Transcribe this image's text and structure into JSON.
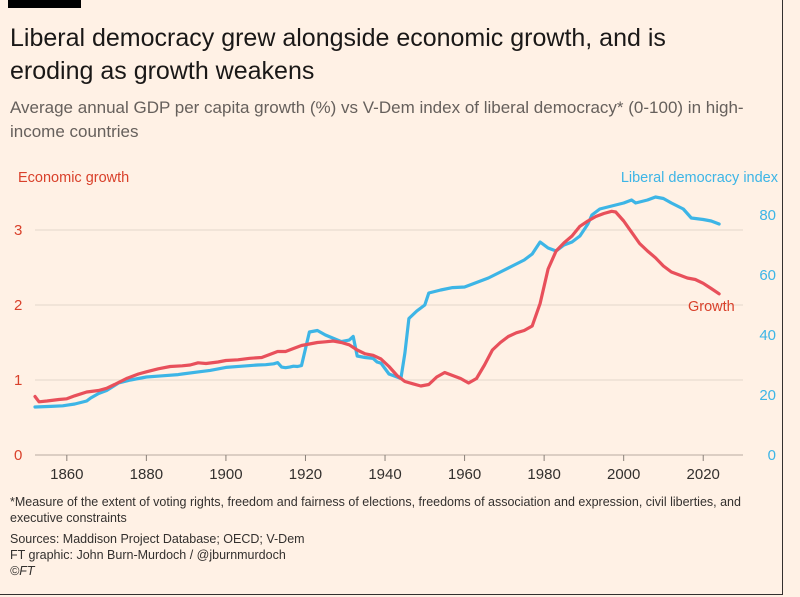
{
  "header": {
    "title": "Liberal democracy grew alongside economic growth, and is eroding as growth weakens",
    "subtitle": "Average annual GDP per capita growth (%) vs V-Dem index of liberal democracy* (0-100) in high-income countries"
  },
  "footer": {
    "note": "*Measure of the extent of voting rights, freedom and fairness of elections, freedoms of association and expression, civil liberties, and executive constraints",
    "sources": "Sources: Maddison Project Database; OECD; V-Dem",
    "credit": "FT graphic: John Burn-Murdoch / @jburnmurdoch",
    "copyright": "©FT"
  },
  "colors": {
    "background": "#fff1e5",
    "growth": "#e8505b",
    "democracy": "#3db5e6",
    "grid": "#e3d6ca",
    "text": "#33302e",
    "left_axis_text": "#d9412b"
  },
  "chart_data": {
    "type": "line",
    "title": "",
    "left_axis": {
      "label": "Economic growth",
      "unit": "%",
      "ylim": [
        0,
        3.4
      ],
      "ticks": [
        "0",
        "1",
        "2",
        "3"
      ]
    },
    "right_axis": {
      "label": "Liberal democracy index",
      "ylim": [
        0,
        85
      ],
      "ticks": [
        "0",
        "20",
        "40",
        "60",
        "80"
      ]
    },
    "x_axis": {
      "xlim": [
        1852,
        2030
      ],
      "ticks": [
        "1860",
        "1880",
        "1900",
        "1920",
        "1940",
        "1960",
        "1980",
        "2000",
        "2020"
      ]
    },
    "series": [
      {
        "name": "Growth",
        "axis": "left",
        "annotation": "Growth",
        "x": [
          1852,
          1853,
          1855,
          1858,
          1860,
          1862,
          1865,
          1868,
          1870,
          1872,
          1875,
          1878,
          1880,
          1883,
          1886,
          1889,
          1891,
          1893,
          1895,
          1898,
          1900,
          1903,
          1906,
          1909,
          1911,
          1913,
          1915,
          1917,
          1919,
          1921,
          1923,
          1925,
          1927,
          1929,
          1931,
          1933,
          1935,
          1937,
          1939,
          1941,
          1943,
          1945,
          1947,
          1949,
          1951,
          1953,
          1955,
          1957,
          1959,
          1961,
          1963,
          1965,
          1967,
          1969,
          1971,
          1973,
          1975,
          1977,
          1979,
          1981,
          1983,
          1985,
          1987,
          1989,
          1991,
          1993,
          1995,
          1997,
          1998,
          2000,
          2002,
          2004,
          2006,
          2008,
          2010,
          2012,
          2014,
          2016,
          2018,
          2020,
          2022,
          2024
        ],
        "values": [
          0.78,
          0.71,
          0.72,
          0.74,
          0.75,
          0.79,
          0.84,
          0.86,
          0.89,
          0.94,
          1.02,
          1.08,
          1.11,
          1.15,
          1.18,
          1.19,
          1.2,
          1.23,
          1.22,
          1.24,
          1.26,
          1.27,
          1.29,
          1.3,
          1.34,
          1.38,
          1.38,
          1.42,
          1.46,
          1.48,
          1.5,
          1.51,
          1.52,
          1.5,
          1.47,
          1.4,
          1.35,
          1.33,
          1.28,
          1.18,
          1.06,
          0.98,
          0.95,
          0.92,
          0.94,
          1.04,
          1.1,
          1.06,
          1.02,
          0.96,
          1.02,
          1.2,
          1.4,
          1.5,
          1.58,
          1.63,
          1.66,
          1.72,
          2.02,
          2.48,
          2.72,
          2.83,
          2.92,
          3.05,
          3.12,
          3.18,
          3.22,
          3.25,
          3.24,
          3.12,
          2.97,
          2.82,
          2.72,
          2.63,
          2.52,
          2.44,
          2.4,
          2.36,
          2.34,
          2.29,
          2.22,
          2.15
        ]
      },
      {
        "name": "Liberal democracy index",
        "axis": "right",
        "x": [
          1852,
          1856,
          1859,
          1860,
          1862,
          1865,
          1866,
          1868,
          1870,
          1873,
          1876,
          1880,
          1884,
          1888,
          1889,
          1893,
          1896,
          1900,
          1904,
          1908,
          1910,
          1912,
          1913,
          1914,
          1915,
          1916,
          1917,
          1918,
          1919,
          1921,
          1923,
          1925,
          1929,
          1931,
          1932,
          1933,
          1935,
          1937,
          1938,
          1939,
          1941,
          1943,
          1944,
          1945,
          1946,
          1948,
          1950,
          1951,
          1954,
          1957,
          1960,
          1963,
          1966,
          1969,
          1972,
          1975,
          1977,
          1979,
          1981,
          1983,
          1985,
          1987,
          1989,
          1991,
          1992,
          1994,
          1997,
          2000,
          2002,
          2003,
          2006,
          2008,
          2010,
          2012,
          2015,
          2017,
          2020,
          2022,
          2024
        ],
        "values": [
          16,
          16.2,
          16.4,
          16.6,
          17,
          18,
          19,
          20.5,
          21.5,
          24,
          25,
          26,
          26.4,
          26.8,
          27,
          27.7,
          28.2,
          29.2,
          29.6,
          30,
          30.1,
          30.4,
          30.8,
          29.3,
          29.1,
          29.3,
          29.6,
          29.5,
          29.8,
          41,
          41.5,
          40,
          37.8,
          38.3,
          39.5,
          33,
          32.5,
          32.2,
          31,
          30.6,
          27,
          26,
          25.5,
          34,
          45.5,
          48,
          50,
          54,
          55,
          55.8,
          56,
          57.5,
          59,
          61,
          63,
          65,
          67,
          71,
          69,
          68,
          70,
          71,
          73,
          77,
          80,
          82,
          83,
          84,
          85,
          84,
          85,
          86,
          85.5,
          84,
          82,
          79,
          78.5,
          78,
          77
        ]
      }
    ]
  }
}
